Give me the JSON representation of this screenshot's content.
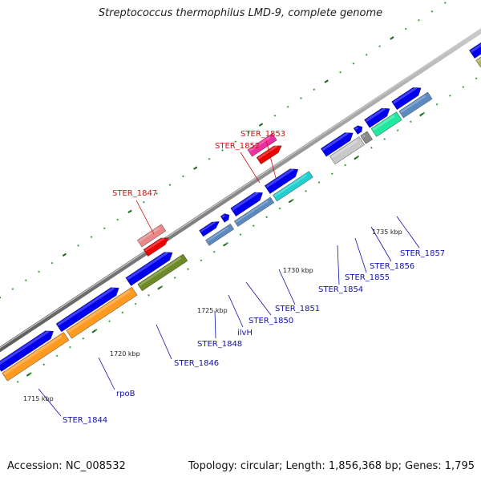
{
  "title": "Streptococcus thermophilus LMD-9, complete genome",
  "footer": {
    "accession": "Accession: NC_008532",
    "summary": "Topology: circular; Length: 1,856,368 bp; Genes: 1,795"
  },
  "scale_labels": [
    "1715 kbp",
    "1720 kbp",
    "1725 kbp",
    "1730 kbp",
    "1735 kbp"
  ],
  "gene_labels": [
    {
      "name": "STER_1844",
      "color": "#1010b0"
    },
    {
      "name": "rpoB",
      "color": "#1010b0"
    },
    {
      "name": "STER_1846",
      "color": "#1010b0"
    },
    {
      "name": "STER_1847",
      "color": "#d01010"
    },
    {
      "name": "STER_1848",
      "color": "#1010b0"
    },
    {
      "name": "ilvH",
      "color": "#1010b0"
    },
    {
      "name": "STER_1850",
      "color": "#1010b0"
    },
    {
      "name": "STER_1851",
      "color": "#1010b0"
    },
    {
      "name": "STER_1852",
      "color": "#d01010"
    },
    {
      "name": "STER_1853",
      "color": "#d01010"
    },
    {
      "name": "STER_1854",
      "color": "#1010b0"
    },
    {
      "name": "STER_1855",
      "color": "#1010b0"
    },
    {
      "name": "STER_1856",
      "color": "#1010b0"
    },
    {
      "name": "STER_1857",
      "color": "#1010b0"
    }
  ],
  "colors": {
    "backbone": "#8a8a8a",
    "cds": "#0000ee",
    "rna_red": "#ee0000",
    "pink": "#e88888",
    "magenta": "#e830a0",
    "orange": "#ff9a20",
    "olive": "#6e8a28",
    "steel": "#5a8ac0",
    "cyan": "#20d0d0",
    "mint": "#20e8a0",
    "silver": "#c8c8c8",
    "khaki": "#b0b060",
    "tick_dark": "#1a6a1a",
    "tick_light": "#3aa03a"
  }
}
